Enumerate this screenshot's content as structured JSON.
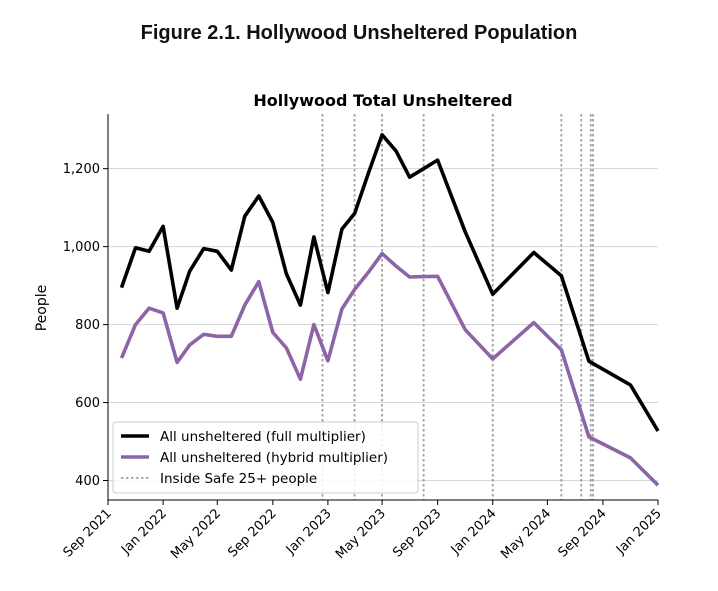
{
  "figure": {
    "title": "Figure 2.1. Hollywood Unsheltered Population"
  },
  "chart_data": {
    "type": "line",
    "title": "Hollywood Total Unsheltered",
    "xlabel": "",
    "ylabel": "People",
    "xlim": [
      "2021-09-01",
      "2025-01-01"
    ],
    "ylim": [
      350,
      1330
    ],
    "yticks": [
      400,
      600,
      800,
      1000,
      1200
    ],
    "ytick_labels": [
      "400",
      "600",
      "800",
      "1,000",
      "1,200"
    ],
    "xticks": [
      "2021-09-01",
      "2022-01-01",
      "2022-05-01",
      "2022-09-01",
      "2023-01-01",
      "2023-05-01",
      "2023-09-01",
      "2024-01-01",
      "2024-05-01",
      "2024-09-01",
      "2025-01-01"
    ],
    "xtick_labels": [
      "Sep 2021",
      "Jan 2022",
      "May 2022",
      "Sep 2022",
      "Jan 2023",
      "May 2023",
      "Sep 2023",
      "Jan 2024",
      "May 2024",
      "Sep 2024",
      "Jan 2025"
    ],
    "grid": "horizontal",
    "legend_position": "bottom-left",
    "series": [
      {
        "name": "All unsheltered (full multiplier)",
        "color": "#000000",
        "points": [
          [
            "2021-10-01",
            895
          ],
          [
            "2021-11-01",
            997
          ],
          [
            "2021-12-01",
            988
          ],
          [
            "2022-01-01",
            1052
          ],
          [
            "2022-02-01",
            842
          ],
          [
            "2022-03-01",
            937
          ],
          [
            "2022-04-01",
            995
          ],
          [
            "2022-05-01",
            988
          ],
          [
            "2022-06-01",
            940
          ],
          [
            "2022-07-01",
            1078
          ],
          [
            "2022-08-01",
            1130
          ],
          [
            "2022-09-01",
            1062
          ],
          [
            "2022-10-01",
            930
          ],
          [
            "2022-11-01",
            850
          ],
          [
            "2022-12-01",
            1025
          ],
          [
            "2023-01-01",
            882
          ],
          [
            "2023-02-01",
            1045
          ],
          [
            "2023-03-01",
            1085
          ],
          [
            "2023-04-01",
            1190
          ],
          [
            "2023-05-01",
            1287
          ],
          [
            "2023-06-01",
            1245
          ],
          [
            "2023-07-01",
            1178
          ],
          [
            "2023-08-01",
            1200
          ],
          [
            "2023-09-01",
            1222
          ],
          [
            "2023-11-01",
            1038
          ],
          [
            "2024-01-01",
            878
          ],
          [
            "2024-04-01",
            985
          ],
          [
            "2024-06-01",
            925
          ],
          [
            "2024-08-01",
            706
          ],
          [
            "2024-11-01",
            645
          ],
          [
            "2025-01-01",
            527
          ]
        ]
      },
      {
        "name": "All unsheltered (hybrid multiplier)",
        "color": "#8c64a8",
        "points": [
          [
            "2021-10-01",
            714
          ],
          [
            "2021-11-01",
            800
          ],
          [
            "2021-12-01",
            842
          ],
          [
            "2022-01-01",
            830
          ],
          [
            "2022-02-01",
            703
          ],
          [
            "2022-03-01",
            748
          ],
          [
            "2022-04-01",
            775
          ],
          [
            "2022-05-01",
            770
          ],
          [
            "2022-06-01",
            770
          ],
          [
            "2022-07-01",
            850
          ],
          [
            "2022-08-01",
            910
          ],
          [
            "2022-09-01",
            780
          ],
          [
            "2022-10-01",
            740
          ],
          [
            "2022-11-01",
            660
          ],
          [
            "2022-12-01",
            800
          ],
          [
            "2023-01-01",
            707
          ],
          [
            "2023-02-01",
            840
          ],
          [
            "2023-03-01",
            890
          ],
          [
            "2023-04-01",
            935
          ],
          [
            "2023-05-01",
            982
          ],
          [
            "2023-06-01",
            950
          ],
          [
            "2023-07-01",
            922
          ],
          [
            "2023-08-01",
            923
          ],
          [
            "2023-09-01",
            924
          ],
          [
            "2023-11-01",
            787
          ],
          [
            "2024-01-01",
            712
          ],
          [
            "2024-04-01",
            805
          ],
          [
            "2024-06-01",
            735
          ],
          [
            "2024-08-01",
            512
          ],
          [
            "2024-11-01",
            458
          ],
          [
            "2025-01-01",
            388
          ]
        ]
      }
    ],
    "vertical_markers": {
      "name": "Inside Safe 25+ people",
      "color": "#a0a0a0",
      "dates": [
        "2022-12-20",
        "2023-03-01",
        "2023-05-01",
        "2023-08-01",
        "2024-01-01",
        "2024-06-01",
        "2024-07-15",
        "2024-08-05",
        "2024-08-10"
      ]
    }
  }
}
